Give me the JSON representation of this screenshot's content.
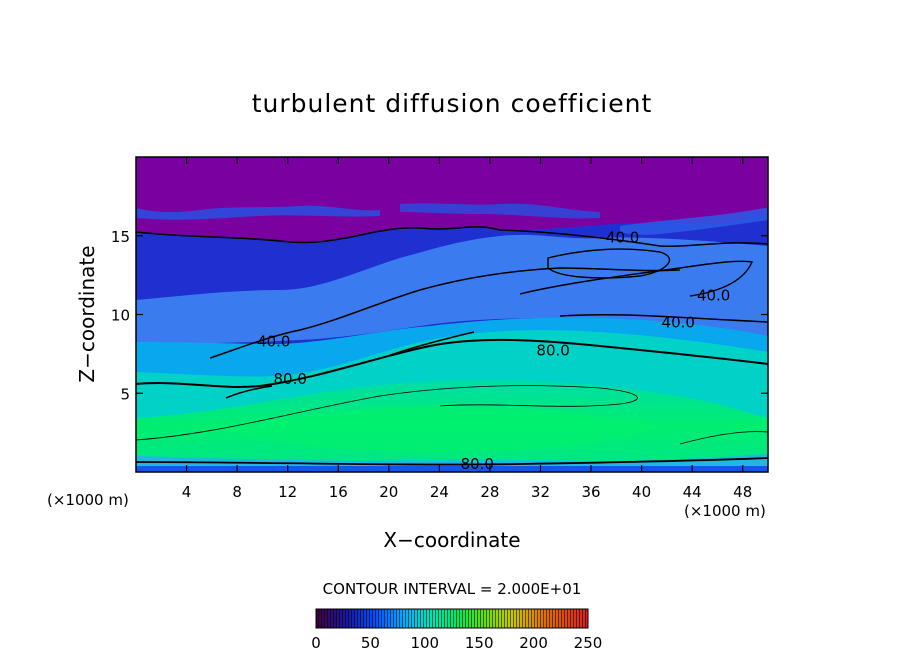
{
  "chart_data": {
    "type": "heatmap",
    "title": "turbulent diffusion coefficient",
    "xlabel": "X−coordinate",
    "ylabel": "Z−coordinate",
    "x_unit_left": "(×1000 m)",
    "x_unit_right": "(×1000 m)",
    "xlim": [
      0,
      50
    ],
    "ylim": [
      0,
      20
    ],
    "x_ticks": [
      4,
      8,
      12,
      16,
      20,
      24,
      28,
      32,
      36,
      40,
      44,
      48
    ],
    "y_ticks": [
      5,
      10,
      15
    ],
    "contour_interval_label": "CONTOUR INTERVAL = 2.000E+01",
    "contour_levels": [
      40,
      80
    ],
    "contour_labels": [
      {
        "text": "40.0",
        "x": 10.9,
        "z": 8.3
      },
      {
        "text": "80.0",
        "x": 12.2,
        "z": 5.9
      },
      {
        "text": "40.0",
        "x": 38.5,
        "z": 14.9
      },
      {
        "text": "40.0",
        "x": 45.7,
        "z": 11.2
      },
      {
        "text": "40.0",
        "x": 42.9,
        "z": 9.5
      },
      {
        "text": "80.0",
        "x": 33.0,
        "z": 7.7
      },
      {
        "text": "80.0",
        "x": 27.0,
        "z": 0.5
      }
    ],
    "colorbar": {
      "min": 0,
      "max": 250,
      "ticks": [
        0,
        50,
        100,
        150,
        200,
        250
      ],
      "colors": [
        "#5a005a",
        "#1a1aa8",
        "#0050ff",
        "#00aaff",
        "#00e2b8",
        "#00e860",
        "#66e000",
        "#c8c800",
        "#e07000",
        "#d82020"
      ]
    },
    "field_bands": [
      {
        "z_range": [
          17,
          20
        ],
        "value": 10,
        "color": "#7a00a0"
      },
      {
        "z_range": [
          9,
          16
        ],
        "value": 40,
        "color": "#1e3ad8"
      },
      {
        "z_range": [
          6,
          9
        ],
        "value": 80,
        "color": "#00b4e8"
      },
      {
        "z_range": [
          0.5,
          6
        ],
        "value": 120,
        "color": "#00e890"
      },
      {
        "z_range": [
          0,
          0.5
        ],
        "value": 40,
        "color": "#1050e0"
      }
    ]
  }
}
